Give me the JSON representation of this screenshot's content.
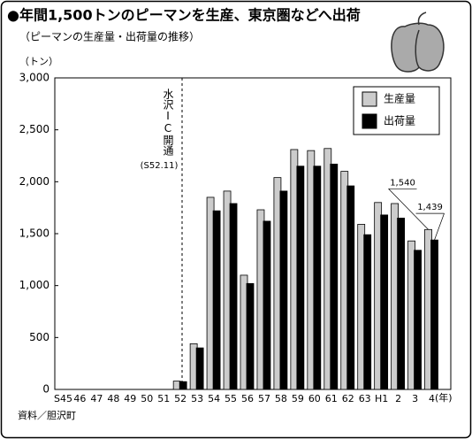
{
  "chart_data": {
    "type": "bar",
    "title": "●年間1,500トンのピーマンを生産、東京圏などへ出荷",
    "subtitle": "（ピーマンの生産量・出荷量の推移）",
    "y_label": "（トン）",
    "x_label": "(年)",
    "source": "資料／胆沢町",
    "annotation": {
      "text": "水沢IC開通",
      "date": "(S52.11)"
    },
    "categories": [
      "S45",
      "46",
      "47",
      "48",
      "49",
      "50",
      "51",
      "52",
      "53",
      "54",
      "55",
      "56",
      "57",
      "58",
      "59",
      "60",
      "61",
      "62",
      "63",
      "H1",
      "2",
      "3",
      "4"
    ],
    "series": [
      {
        "name": "生産量",
        "color": "#cccccc",
        "values": [
          0,
          0,
          0,
          0,
          0,
          0,
          0,
          80,
          440,
          1850,
          1910,
          1100,
          1730,
          2040,
          2310,
          2300,
          2320,
          2100,
          1590,
          1800,
          1790,
          1430,
          1540
        ],
        "value_labels": [
          null,
          null,
          null,
          null,
          null,
          null,
          null,
          null,
          null,
          null,
          null,
          null,
          null,
          null,
          null,
          null,
          null,
          null,
          null,
          null,
          null,
          null,
          "1,540"
        ]
      },
      {
        "name": "出荷量",
        "color": "#000000",
        "values": [
          0,
          0,
          0,
          0,
          0,
          0,
          0,
          75,
          400,
          1720,
          1790,
          1020,
          1620,
          1910,
          2150,
          2150,
          2170,
          1960,
          1490,
          1680,
          1650,
          1340,
          1439
        ],
        "value_labels": [
          null,
          null,
          null,
          null,
          null,
          null,
          null,
          null,
          null,
          null,
          null,
          null,
          null,
          null,
          null,
          null,
          null,
          null,
          null,
          null,
          null,
          null,
          "1,439"
        ]
      }
    ],
    "ylim": [
      0,
      3000
    ],
    "yticks": [
      0,
      500,
      {
        "value": 1000,
        "label": "1,000"
      },
      {
        "value": 1500,
        "label": "1,500"
      },
      {
        "value": 2000,
        "label": "2,000"
      },
      {
        "value": 2500,
        "label": "2,500"
      },
      {
        "value": 3000,
        "label": "3,000"
      }
    ],
    "grid": false,
    "legend": "upper right"
  }
}
